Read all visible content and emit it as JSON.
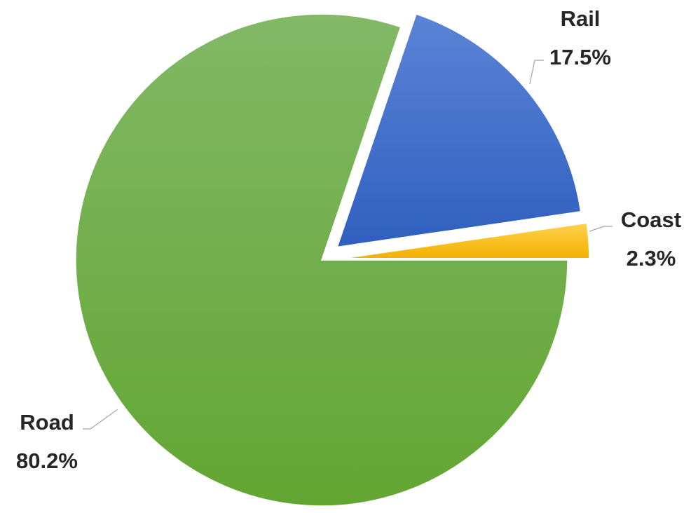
{
  "chart_data": {
    "type": "pie",
    "slices": [
      {
        "name": "Road",
        "value": 80.2,
        "label": "80.2%",
        "color": "#6aaa3c",
        "exploded": false
      },
      {
        "name": "Rail",
        "value": 17.5,
        "label": "17.5%",
        "color": "#3e6fcc",
        "exploded": true
      },
      {
        "name": "Coast",
        "value": 2.3,
        "label": "2.3%",
        "color": "#ffc000",
        "exploded": true
      }
    ],
    "legend": "none",
    "data_labels": "outside, category and percent"
  }
}
